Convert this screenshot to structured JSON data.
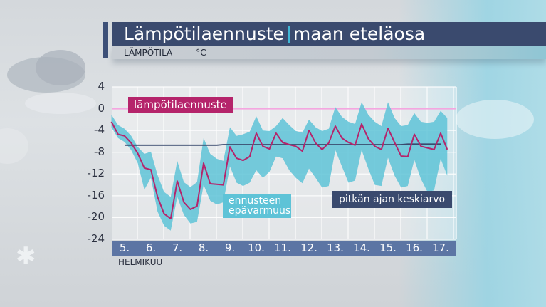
{
  "header": {
    "title_main": "Lämpötilaennuste",
    "title_region": "maan eteläosa",
    "subtitle_quantity": "LÄMPÖTILA",
    "subtitle_unit": "°C"
  },
  "colors": {
    "title_bar": "#3a4a6e",
    "accent_cyan": "#3fb7d6",
    "forecast_line": "#b5246b",
    "uncertainty_band": "#5ec3d7",
    "mean_line": "#3a4a6e",
    "zero_line": "#f4a6e0",
    "x_axis_bar": "#5c75a4"
  },
  "legend": {
    "forecast": "lämpötilaennuste",
    "uncertainty_line1": "ennusteen",
    "uncertainty_line2": "epävarmuus",
    "mean": "pitkän ajan keskiarvo"
  },
  "axis": {
    "y_ticks": [
      "4",
      "0",
      "-4",
      "-8",
      "-12",
      "-16",
      "-20",
      "-24"
    ],
    "x_ticks": [
      "5.",
      "6.",
      "7.",
      "8.",
      "9.",
      "10.",
      "11.",
      "12.",
      "13.",
      "14.",
      "15.",
      "16.",
      "17."
    ],
    "month": "HELMIKUU"
  },
  "chart_data": {
    "type": "line",
    "title": "Lämpötilaennuste | maan eteläosa",
    "subtitle": "LÄMPÖTILA | °C",
    "xlabel": "HELMIKUU",
    "ylabel": "°C",
    "ylim": [
      -24,
      4
    ],
    "yticks": [
      4,
      0,
      -4,
      -8,
      -12,
      -16,
      -20,
      -24
    ],
    "categories": [
      "5.",
      "6.",
      "7.",
      "8.",
      "9.",
      "10.",
      "11.",
      "12.",
      "13.",
      "14.",
      "15.",
      "16.",
      "17."
    ],
    "grid": true,
    "x_step_note": "4 values per day (6-hour steps), starting at day 5 00:00",
    "x": [
      4.5,
      4.75,
      5,
      5.25,
      5.5,
      5.75,
      6,
      6.25,
      6.5,
      6.75,
      7,
      7.25,
      7.5,
      7.75,
      8,
      8.25,
      8.5,
      8.75,
      9,
      9.25,
      9.5,
      9.75,
      10,
      10.25,
      10.5,
      10.75,
      11,
      11.25,
      11.5,
      11.75,
      12,
      12.25,
      12.5,
      12.75,
      13,
      13.25,
      13.5,
      13.75,
      14,
      14.25,
      14.5,
      14.75,
      15,
      15.25,
      15.5,
      15.75,
      16,
      16.25,
      16.5,
      16.75,
      17,
      17.25
    ],
    "series": [
      {
        "name": "lämpötilaennuste",
        "values": [
          -2.4,
          -4.7,
          -5.0,
          -6.3,
          -8.2,
          -10.9,
          -11.2,
          -16.2,
          -19.3,
          -20.2,
          -13.3,
          -17.2,
          -18.5,
          -17.9,
          -10.0,
          -13.8,
          -13.9,
          -14.0,
          -7.0,
          -9.1,
          -9.5,
          -8.8,
          -4.5,
          -6.9,
          -7.4,
          -4.5,
          -6.2,
          -6.6,
          -6.9,
          -7.8,
          -4.0,
          -6.3,
          -7.5,
          -6.3,
          -3.2,
          -5.4,
          -6.2,
          -6.7,
          -2.8,
          -5.5,
          -6.9,
          -7.5,
          -3.6,
          -6.2,
          -8.7,
          -8.8,
          -4.7,
          -6.9,
          -7.2,
          -7.5,
          -4.5,
          -7.5
        ]
      },
      {
        "name": "pitkän ajan keskiarvo",
        "values": [
          null,
          null,
          -6.7,
          -6.7,
          -6.7,
          -6.7,
          -6.7,
          -6.7,
          -6.7,
          -6.7,
          -6.7,
          -6.7,
          -6.7,
          -6.7,
          -6.7,
          -6.7,
          -6.7,
          -6.6,
          -6.6,
          -6.6,
          -6.6,
          -6.6,
          -6.6,
          -6.6,
          -6.6,
          -6.6,
          -6.6,
          -6.6,
          -6.6,
          -6.6,
          -6.6,
          -6.6,
          -6.6,
          -6.6,
          -6.6,
          -6.6,
          -6.6,
          -6.6,
          -6.6,
          -6.6,
          -6.6,
          -6.6,
          -6.6,
          -6.6,
          -6.6,
          -6.5,
          -6.5,
          -6.5,
          -6.5,
          -6.5,
          -6.5,
          null
        ]
      },
      {
        "name": "ennusteen epävarmuus (yläraja)",
        "values": [
          -1.1,
          -3.0,
          -3.7,
          -5.0,
          -7.0,
          -8.3,
          -7.9,
          -12.2,
          -15.3,
          -16.2,
          -9.6,
          -13.5,
          -14.4,
          -13.5,
          -5.4,
          -8.3,
          -9.2,
          -9.6,
          -3.4,
          -5.0,
          -4.7,
          -4.2,
          -1.4,
          -4.0,
          -4.1,
          -3.2,
          -1.7,
          -3.0,
          -4.1,
          -4.4,
          -2.0,
          -3.4,
          -4.1,
          -3.7,
          0.3,
          -1.5,
          -2.4,
          -2.8,
          1.2,
          -1.1,
          -2.4,
          -3.2,
          1.2,
          -1.7,
          -3.2,
          -3.0,
          -0.8,
          -2.4,
          -2.6,
          -2.4,
          -0.4,
          -1.7
        ]
      },
      {
        "name": "ennusteen epävarmuus (alaraja)",
        "values": [
          -3.4,
          -5.4,
          -6.1,
          -7.6,
          -10.0,
          -14.9,
          -12.7,
          -18.9,
          -21.5,
          -22.4,
          -16.2,
          -19.5,
          -21.1,
          -20.8,
          -14.0,
          -16.9,
          -17.6,
          -17.2,
          -10.6,
          -13.6,
          -14.2,
          -13.6,
          -11.3,
          -12.7,
          -11.6,
          -8.8,
          -9.1,
          -11.3,
          -12.7,
          -13.7,
          -11.0,
          -12.7,
          -14.5,
          -14.2,
          -7.6,
          -10.6,
          -13.6,
          -13.2,
          -7.6,
          -11.0,
          -14.0,
          -14.2,
          -9.0,
          -12.3,
          -14.5,
          -14.2,
          -9.4,
          -12.9,
          -15.3,
          -15.0,
          -9.2,
          -12.3
        ]
      }
    ],
    "reference_lines": [
      {
        "name": "0-viiva",
        "y": 0
      }
    ],
    "legend_position": "inline labels"
  }
}
